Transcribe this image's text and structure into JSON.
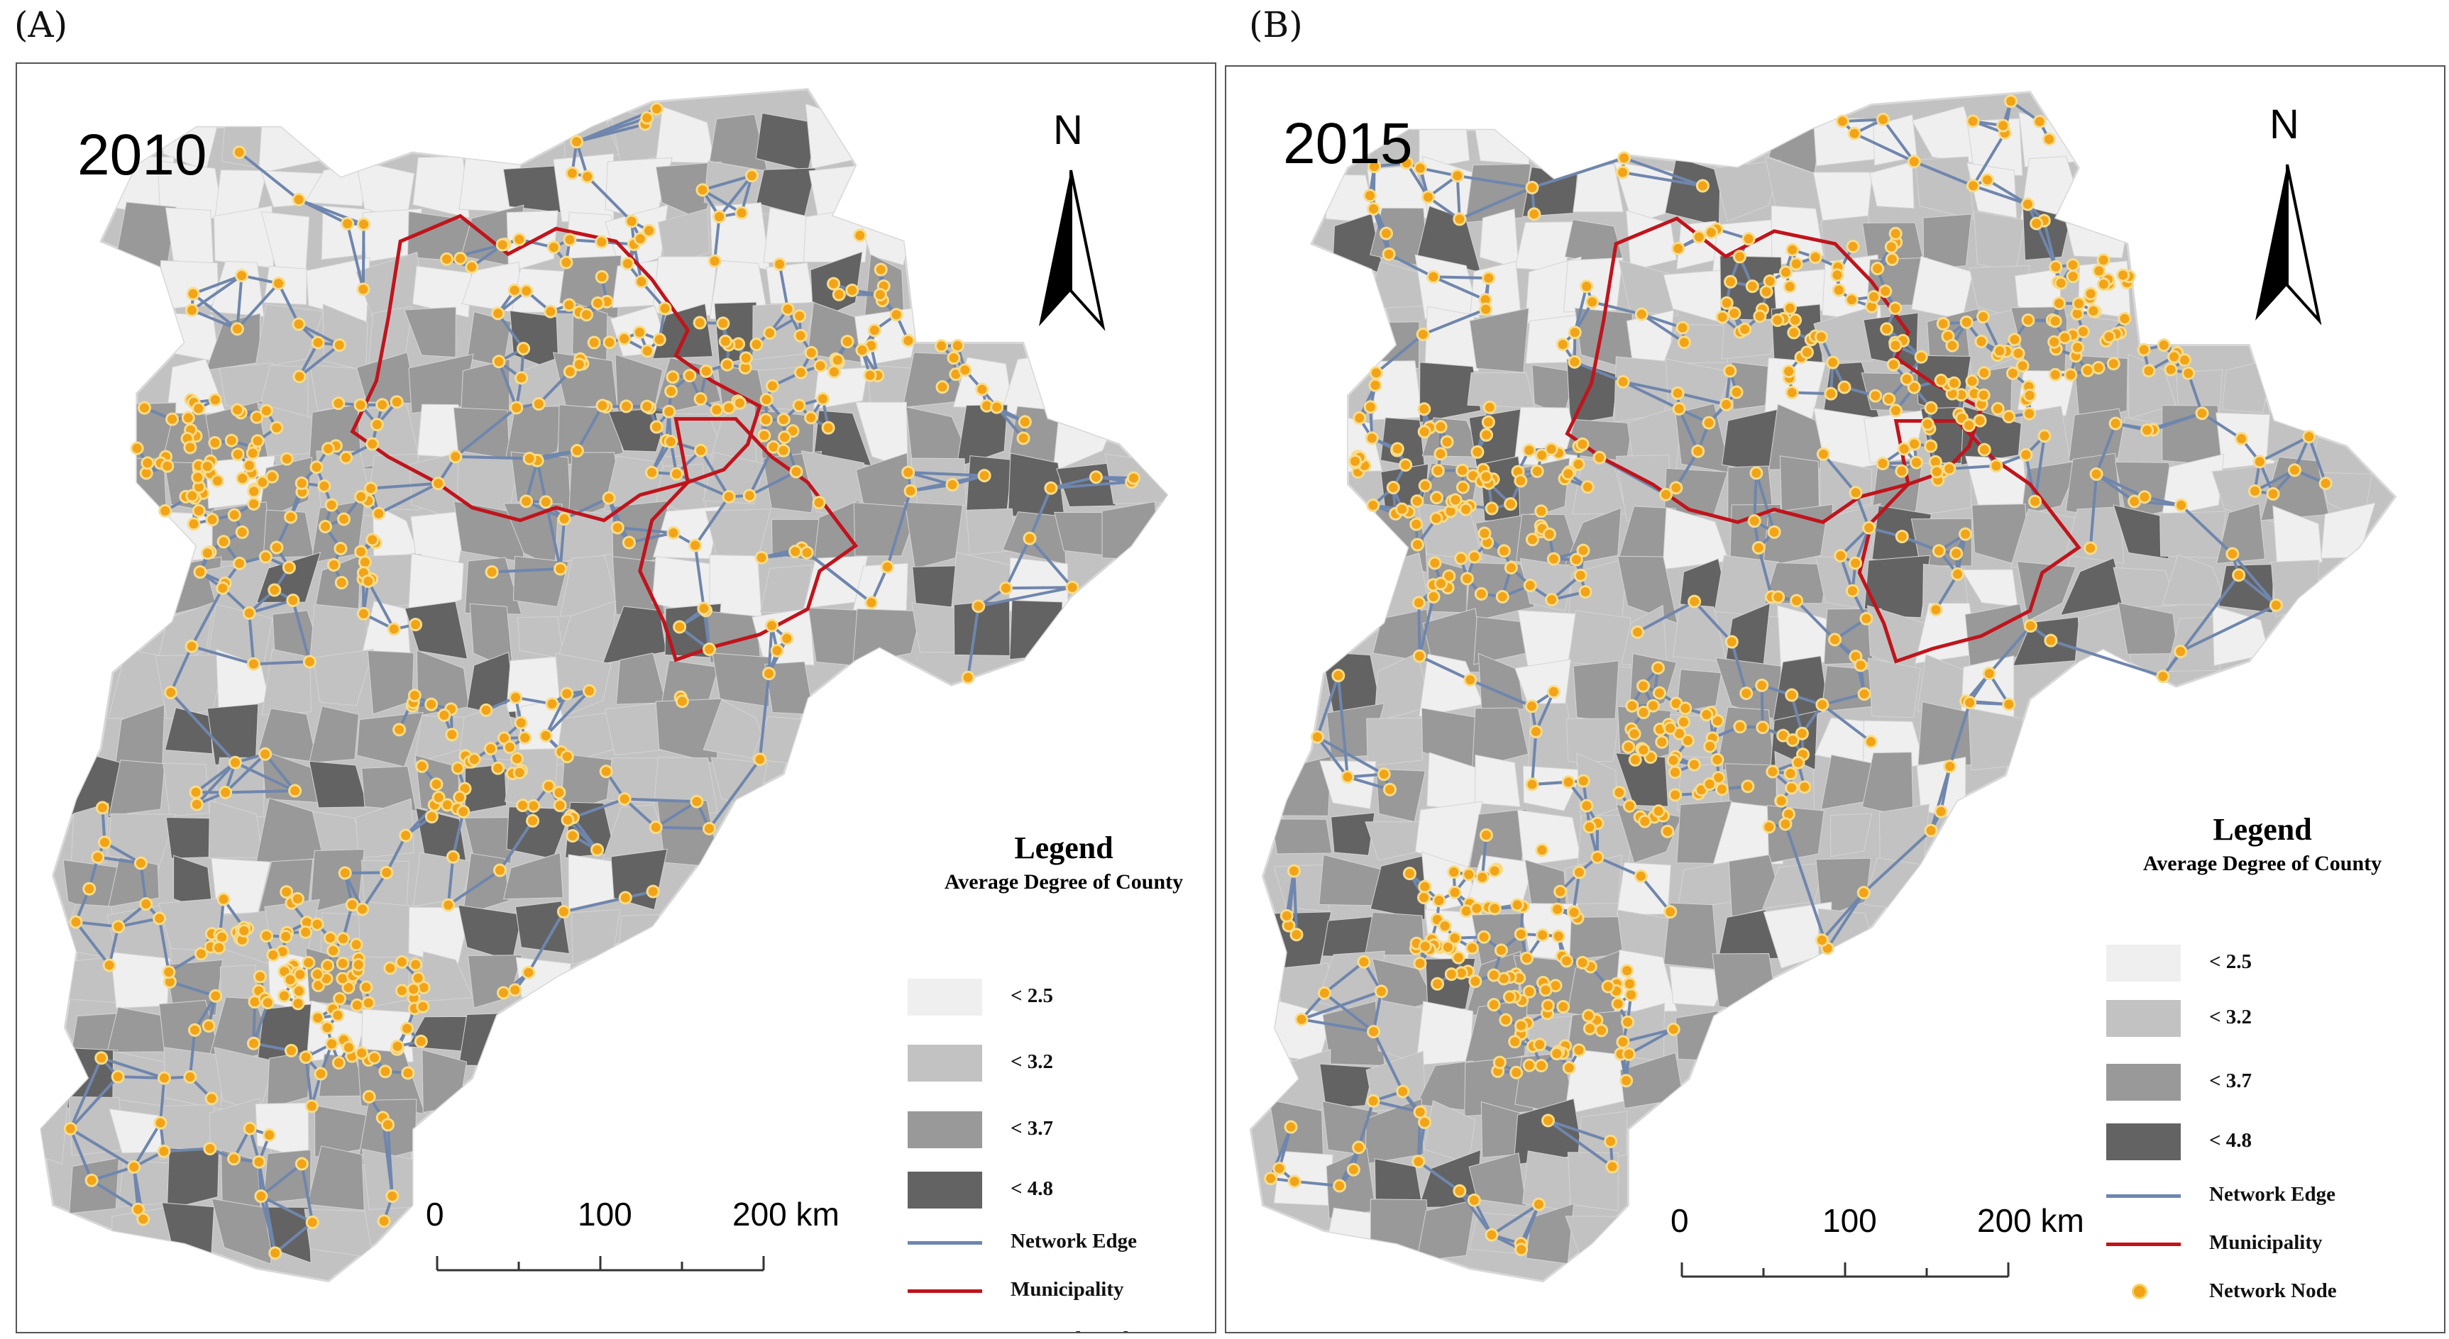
{
  "panels": [
    {
      "label": "(A)",
      "year": "2010",
      "north": "N",
      "legend": {
        "title": "Legend",
        "subtitle": "Average Degree of County",
        "classes": [
          {
            "label": "< 2.5",
            "color": "#efefef"
          },
          {
            "label": "< 3.2",
            "color": "#c2c2c2"
          },
          {
            "label": "< 3.7",
            "color": "#999999"
          },
          {
            "label": "< 4.8",
            "color": "#636363"
          }
        ],
        "edge_label": "Network Edge",
        "edge_color": "#6f86ad",
        "municipality_label": "Municipality",
        "municipality_color": "#c0141c",
        "node_label": "Network Node",
        "node_color": "#f2a316"
      },
      "scale": {
        "ticks": [
          "0",
          "100",
          "200 km"
        ]
      }
    },
    {
      "label": "(B)",
      "year": "2015",
      "north": "N",
      "legend": {
        "title": "Legend",
        "subtitle": "Average Degree of County",
        "classes": [
          {
            "label": "< 2.5",
            "color": "#efefef"
          },
          {
            "label": "< 3.2",
            "color": "#c2c2c2"
          },
          {
            "label": "< 3.7",
            "color": "#999999"
          },
          {
            "label": "< 4.8",
            "color": "#636363"
          }
        ],
        "edge_label": "Network Edge",
        "edge_color": "#6f86ad",
        "municipality_label": "Municipality",
        "municipality_color": "#c0141c",
        "node_label": "Network Node",
        "node_color": "#f2a316"
      },
      "scale": {
        "ticks": [
          "0",
          "100",
          "200 km"
        ]
      }
    }
  ]
}
